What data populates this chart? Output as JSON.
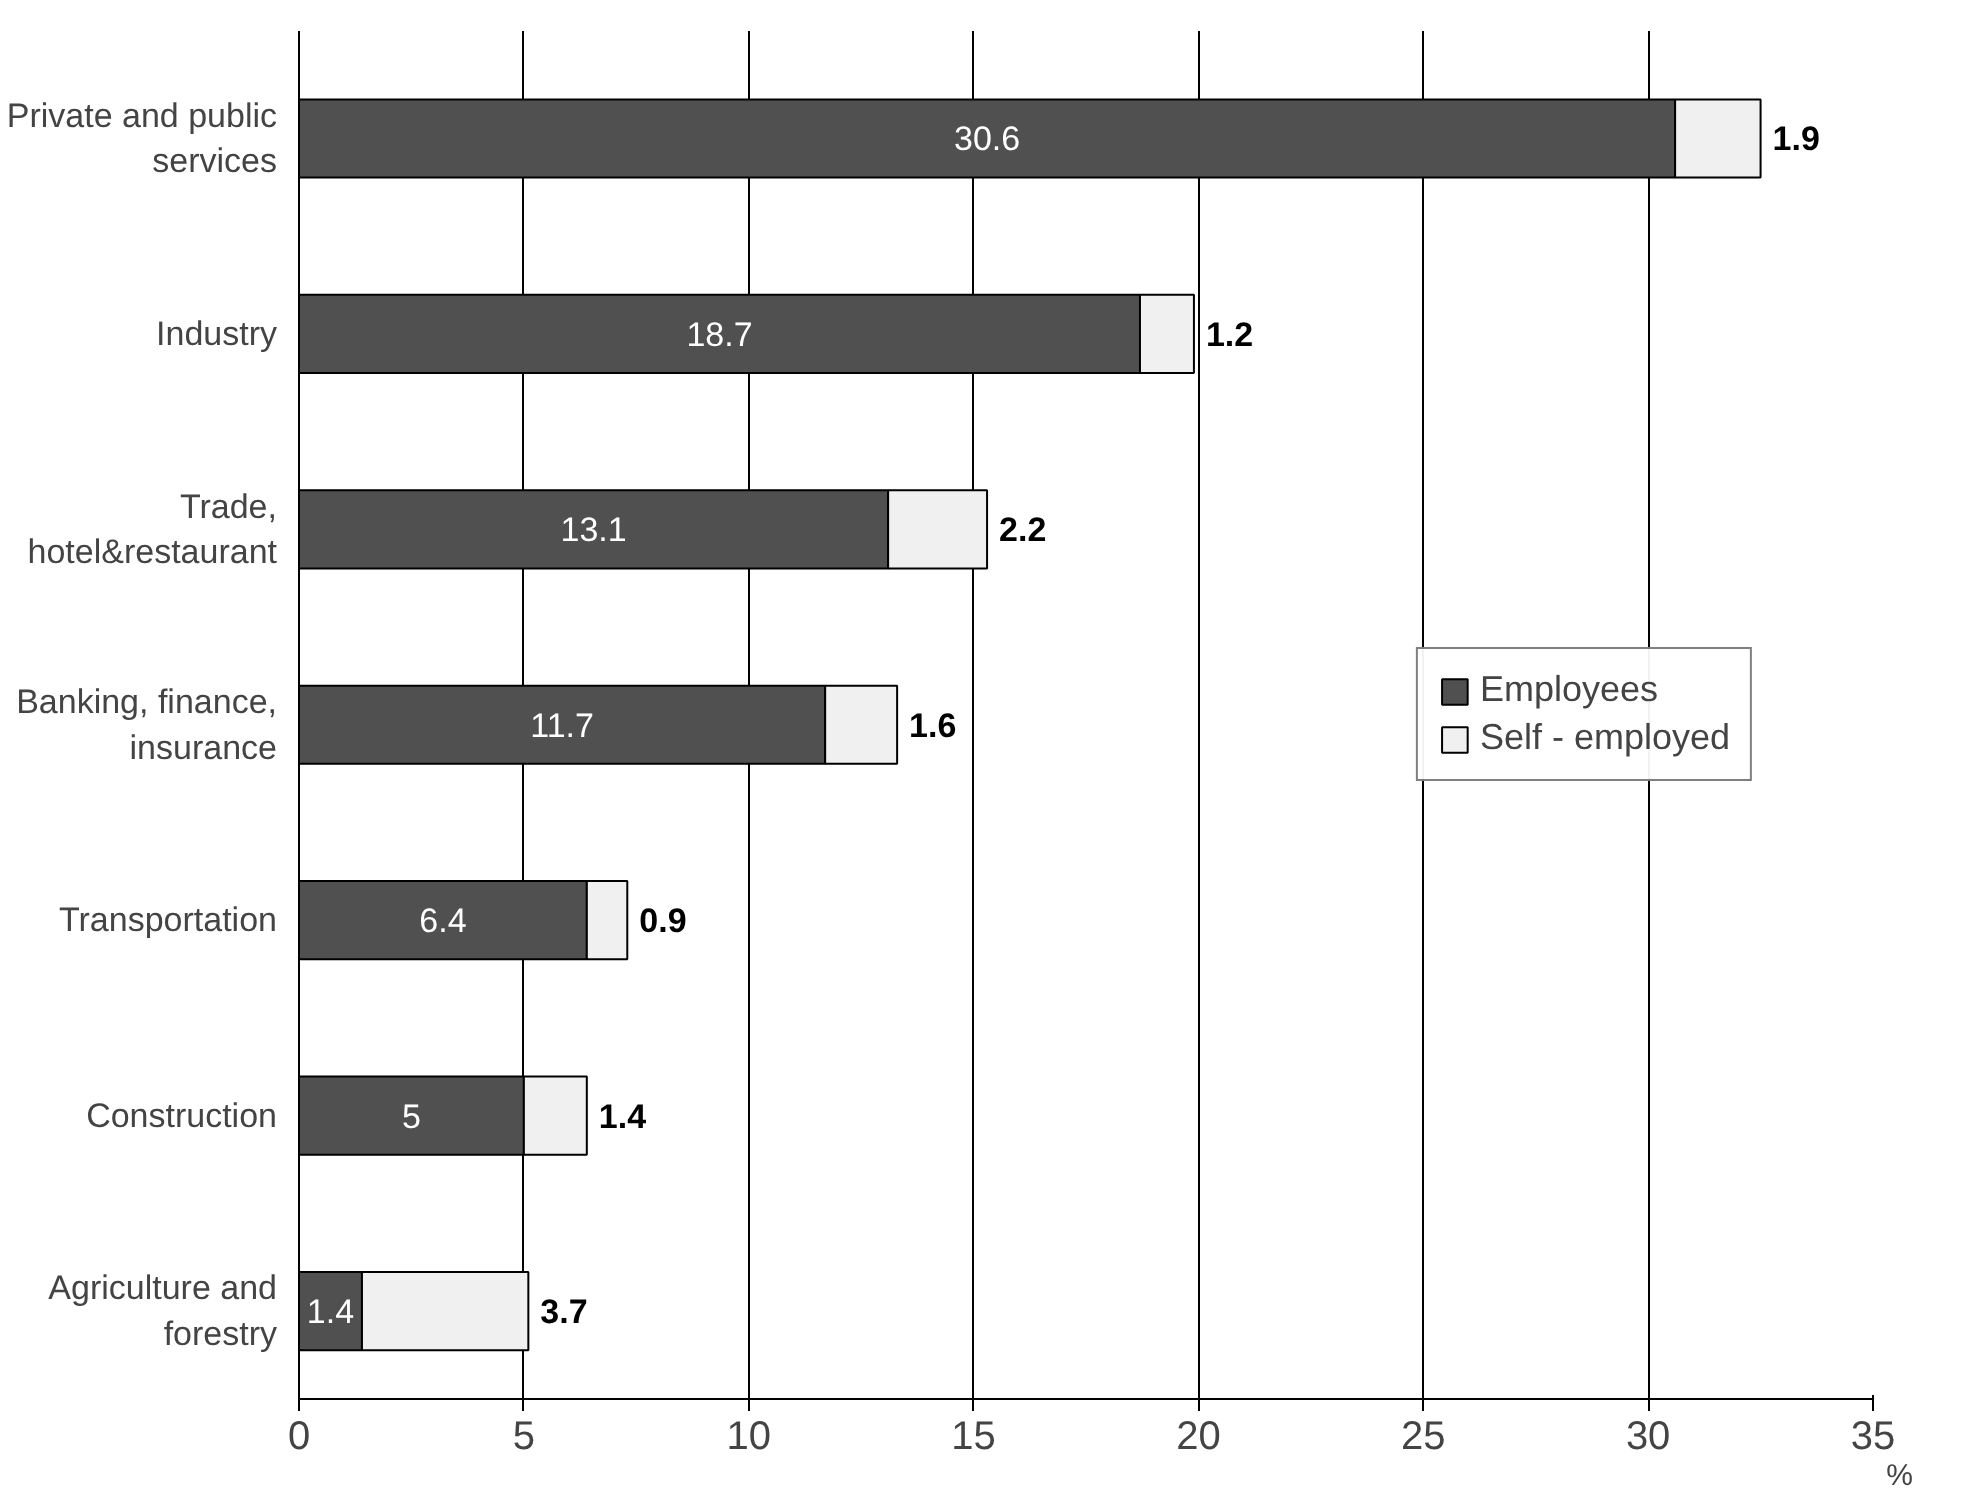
{
  "chart_data": {
    "type": "bar",
    "orientation": "horizontal",
    "stacked": true,
    "xlabel": "%",
    "categories": [
      "Private and public services",
      "Industry",
      "Trade, hotel&restaurant",
      "Banking, finance, insurance",
      "Transportation",
      "Construction",
      "Agriculture and forestry"
    ],
    "series": [
      {
        "name": "Employees",
        "color": "#505050",
        "values": [
          30.6,
          18.7,
          13.1,
          11.7,
          6.4,
          5,
          1.4
        ]
      },
      {
        "name": "Self - employed",
        "color": "#f0f0f0",
        "values": [
          1.9,
          1.2,
          2.2,
          1.6,
          0.9,
          1.4,
          3.7
        ]
      }
    ],
    "xlim": [
      0,
      35
    ],
    "xticks": [
      0,
      5,
      10,
      15,
      20,
      25,
      30,
      35
    ],
    "grid": "x",
    "legend": "right",
    "data_labels": true
  }
}
